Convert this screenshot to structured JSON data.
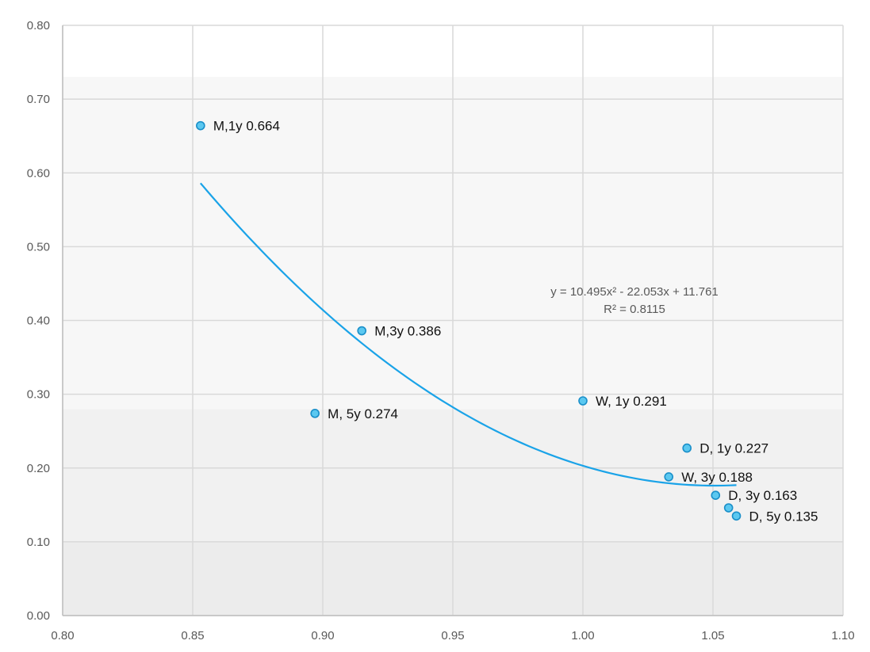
{
  "chart_data": {
    "type": "scatter",
    "xlim": [
      0.8,
      1.1
    ],
    "ylim": [
      0.0,
      0.8
    ],
    "x_ticks": [
      0.8,
      0.85,
      0.9,
      0.95,
      1.0,
      1.05,
      1.1
    ],
    "y_ticks": [
      0.0,
      0.1,
      0.2,
      0.3,
      0.4,
      0.5,
      0.6,
      0.7,
      0.8
    ],
    "x_tick_labels": [
      "0.80",
      "0.85",
      "0.90",
      "0.95",
      "1.00",
      "1.05",
      "1.10"
    ],
    "y_tick_labels": [
      "0.00",
      "0.10",
      "0.20",
      "0.30",
      "0.40",
      "0.50",
      "0.60",
      "0.70",
      "0.80"
    ],
    "grid": true,
    "marker_color": "#5bc8f0",
    "marker_edge_color": "#1a8fc9",
    "trend_color": "#1aa3e8",
    "points": [
      {
        "x": 0.853,
        "y": 0.664,
        "label": "M,1y 0.664"
      },
      {
        "x": 0.915,
        "y": 0.386,
        "label": "M,3y 0.386"
      },
      {
        "x": 0.897,
        "y": 0.274,
        "label": "M, 5y 0.274"
      },
      {
        "x": 1.0,
        "y": 0.291,
        "label": "W, 1y 0.291"
      },
      {
        "x": 1.04,
        "y": 0.227,
        "label": "D, 1y 0.227"
      },
      {
        "x": 1.033,
        "y": 0.188,
        "label": "W, 3y 0.188"
      },
      {
        "x": 1.051,
        "y": 0.163,
        "label": "D, 3y 0.163"
      },
      {
        "x": 1.056,
        "y": 0.146,
        "label": ""
      },
      {
        "x": 1.059,
        "y": 0.135,
        "label": "D, 5y 0.135"
      }
    ],
    "trendline": {
      "type": "polynomial",
      "coefficients": [
        10.495,
        -22.053,
        11.761
      ],
      "x_range": [
        0.853,
        1.059
      ],
      "equation": "y = 10.495x² - 22.053x + 11.761",
      "r_squared": "R² = 0.8115"
    }
  }
}
